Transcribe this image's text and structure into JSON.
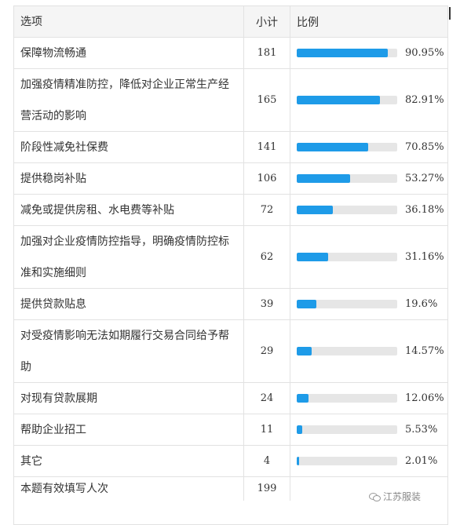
{
  "header": {
    "option": "选项",
    "count": "小计",
    "ratio": "比例"
  },
  "rows": [
    {
      "option": "保障物流畅通",
      "count": "181",
      "percent_text": "90.95%",
      "percent": 90.95
    },
    {
      "option": "加强疫情精准防控，降低对企业正常生产经营活动的影响",
      "count": "165",
      "percent_text": "82.91%",
      "percent": 82.91
    },
    {
      "option": "阶段性减免社保费",
      "count": "141",
      "percent_text": "70.85%",
      "percent": 70.85
    },
    {
      "option": "提供稳岗补贴",
      "count": "106",
      "percent_text": "53.27%",
      "percent": 53.27
    },
    {
      "option": "减免或提供房租、水电费等补贴",
      "count": "72",
      "percent_text": "36.18%",
      "percent": 36.18
    },
    {
      "option": "加强对企业疫情防控指导，明确疫情防控标准和实施细则",
      "count": "62",
      "percent_text": "31.16%",
      "percent": 31.16
    },
    {
      "option": "提供贷款贴息",
      "count": "39",
      "percent_text": "19.6%",
      "percent": 19.6
    },
    {
      "option": "对受疫情影响无法如期履行交易合同给予帮助",
      "count": "29",
      "percent_text": "14.57%",
      "percent": 14.57
    },
    {
      "option": "对现有贷款展期",
      "count": "24",
      "percent_text": "12.06%",
      "percent": 12.06
    },
    {
      "option": "帮助企业招工",
      "count": "11",
      "percent_text": "5.53%",
      "percent": 5.53
    },
    {
      "option": "其它",
      "count": "4",
      "percent_text": "2.01%",
      "percent": 2.01
    }
  ],
  "total": {
    "label": "本题有效填写人次",
    "count": "199"
  },
  "watermark": {
    "text": "江苏服装",
    "icon": "wechat-icon"
  },
  "colors": {
    "bar_fill": "#1e9be8",
    "bar_track": "#e6e6e6",
    "header_bg": "#f5f5f5"
  }
}
